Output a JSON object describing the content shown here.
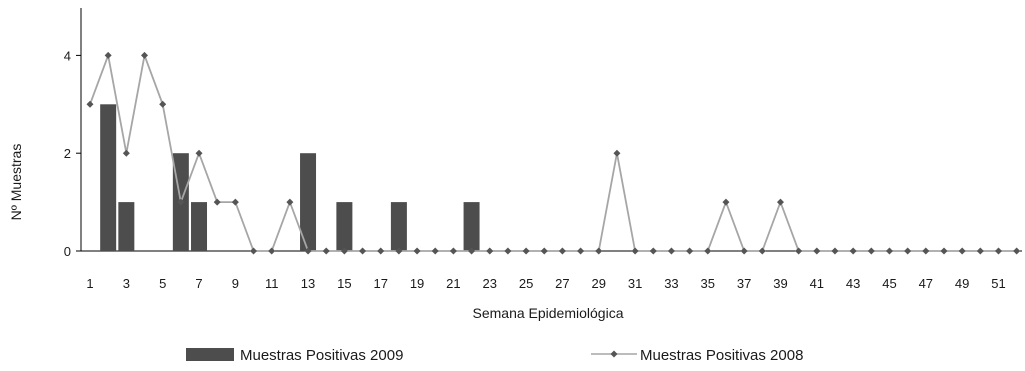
{
  "chart_data": {
    "type": "bar+line",
    "title": "",
    "xlabel": "Semana Epidemiológica",
    "ylabel": "Nº Muestras",
    "x": [
      1,
      2,
      3,
      4,
      5,
      6,
      7,
      8,
      9,
      10,
      11,
      12,
      13,
      14,
      15,
      16,
      17,
      18,
      19,
      20,
      21,
      22,
      23,
      24,
      25,
      26,
      27,
      28,
      29,
      30,
      31,
      32,
      33,
      34,
      35,
      36,
      37,
      38,
      39,
      40,
      41,
      42,
      43,
      44,
      45,
      46,
      47,
      48,
      49,
      50,
      51,
      52
    ],
    "x_tick_labels": [
      "1",
      "3",
      "5",
      "7",
      "9",
      "11",
      "13",
      "15",
      "17",
      "19",
      "21",
      "23",
      "25",
      "27",
      "29",
      "31",
      "33",
      "35",
      "37",
      "39",
      "41",
      "43",
      "45",
      "47",
      "49",
      "51"
    ],
    "y_ticks": [
      "0",
      "2",
      "4"
    ],
    "ylim": [
      0,
      5
    ],
    "grid": false,
    "legend_position": "bottom",
    "series": [
      {
        "name": "Muestras Positivas 2009",
        "kind": "bar",
        "color": "#4d4d4d",
        "values": [
          0,
          3,
          1,
          0,
          0,
          2,
          1,
          0,
          0,
          0,
          0,
          0,
          2,
          0,
          1,
          0,
          0,
          1,
          0,
          0,
          0,
          1,
          0,
          0,
          0,
          0,
          0,
          0,
          0,
          0,
          0,
          0,
          0,
          0,
          0,
          0,
          0,
          0,
          0,
          0,
          0,
          0,
          0,
          0,
          0,
          0,
          0,
          0,
          0,
          0,
          0,
          0
        ]
      },
      {
        "name": "Muestras Positivas 2008",
        "kind": "line",
        "color": "#a6a6a6",
        "marker_color": "#555555",
        "values": [
          3,
          4,
          2,
          4,
          3,
          1,
          2,
          1,
          1,
          0,
          0,
          1,
          0,
          0,
          0,
          0,
          0,
          0,
          0,
          0,
          0,
          0,
          0,
          0,
          0,
          0,
          0,
          0,
          0,
          2,
          0,
          0,
          0,
          0,
          0,
          1,
          0,
          0,
          1,
          0,
          0,
          0,
          0,
          0,
          0,
          0,
          0,
          0,
          0,
          0,
          0,
          0
        ]
      }
    ]
  }
}
